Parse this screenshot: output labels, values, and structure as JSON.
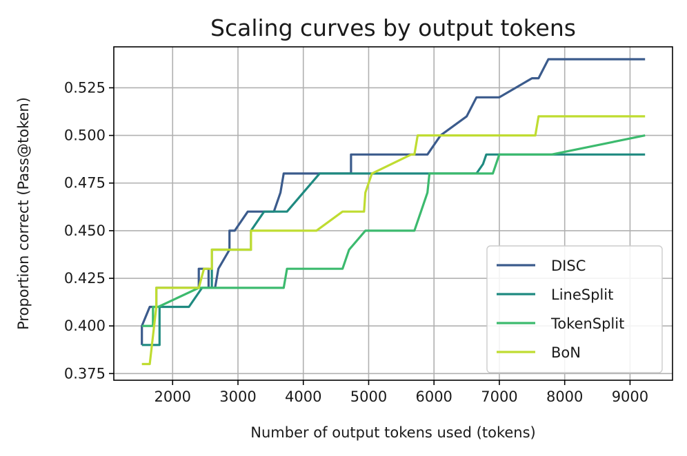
{
  "chart_data": {
    "type": "line",
    "title": "Scaling curves by output tokens",
    "xlabel": "Number of output tokens used (tokens)",
    "ylabel": "Proportion correct (Pass@token)",
    "xlim": [
      1100,
      9650
    ],
    "ylim": [
      0.3715,
      0.5465
    ],
    "xticks": [
      2000,
      3000,
      4000,
      5000,
      6000,
      7000,
      8000,
      9000
    ],
    "xtick_labels": [
      "2000",
      "3000",
      "4000",
      "5000",
      "6000",
      "7000",
      "8000",
      "9000"
    ],
    "yticks": [
      0.375,
      0.4,
      0.425,
      0.45,
      0.475,
      0.5,
      0.525
    ],
    "ytick_labels": [
      "0.375",
      "0.400",
      "0.425",
      "0.450",
      "0.475",
      "0.500",
      "0.525"
    ],
    "grid": true,
    "legend_position": "lower-right",
    "series": [
      {
        "name": "DISC",
        "color": "#3b5b8c",
        "points": [
          [
            1530,
            0.39
          ],
          [
            1530,
            0.4
          ],
          [
            1650,
            0.41
          ],
          [
            1750,
            0.41
          ],
          [
            1750,
            0.42
          ],
          [
            1820,
            0.42
          ],
          [
            2400,
            0.42
          ],
          [
            2400,
            0.43
          ],
          [
            2550,
            0.43
          ],
          [
            2550,
            0.42
          ],
          [
            2650,
            0.42
          ],
          [
            2700,
            0.43
          ],
          [
            2870,
            0.44
          ],
          [
            2870,
            0.45
          ],
          [
            2950,
            0.45
          ],
          [
            3150,
            0.46
          ],
          [
            3550,
            0.46
          ],
          [
            3650,
            0.47
          ],
          [
            3700,
            0.48
          ],
          [
            4700,
            0.48
          ],
          [
            4730,
            0.48
          ],
          [
            4730,
            0.49
          ],
          [
            5900,
            0.49
          ],
          [
            6100,
            0.5
          ],
          [
            6500,
            0.51
          ],
          [
            6650,
            0.52
          ],
          [
            7000,
            0.52
          ],
          [
            7500,
            0.53
          ],
          [
            7600,
            0.53
          ],
          [
            7750,
            0.54
          ],
          [
            9230,
            0.54
          ]
        ]
      },
      {
        "name": "LineSplit",
        "color": "#1f8a80",
        "points": [
          [
            1530,
            0.39
          ],
          [
            1800,
            0.39
          ],
          [
            1800,
            0.41
          ],
          [
            1900,
            0.41
          ],
          [
            2250,
            0.41
          ],
          [
            2450,
            0.42
          ],
          [
            2600,
            0.42
          ],
          [
            2600,
            0.44
          ],
          [
            2700,
            0.44
          ],
          [
            3200,
            0.44
          ],
          [
            3200,
            0.45
          ],
          [
            3400,
            0.46
          ],
          [
            3750,
            0.46
          ],
          [
            4000,
            0.47
          ],
          [
            4250,
            0.48
          ],
          [
            4800,
            0.48
          ],
          [
            6650,
            0.48
          ],
          [
            6750,
            0.485
          ],
          [
            6800,
            0.49
          ],
          [
            9230,
            0.49
          ]
        ]
      },
      {
        "name": "TokenSplit",
        "color": "#3cba6e",
        "points": [
          [
            1530,
            0.4
          ],
          [
            1700,
            0.4
          ],
          [
            1700,
            0.41
          ],
          [
            1780,
            0.41
          ],
          [
            2400,
            0.42
          ],
          [
            3700,
            0.42
          ],
          [
            3750,
            0.43
          ],
          [
            4600,
            0.43
          ],
          [
            4700,
            0.44
          ],
          [
            4950,
            0.45
          ],
          [
            5700,
            0.45
          ],
          [
            5800,
            0.46
          ],
          [
            5900,
            0.47
          ],
          [
            5930,
            0.48
          ],
          [
            6900,
            0.48
          ],
          [
            7000,
            0.49
          ],
          [
            7800,
            0.49
          ],
          [
            9230,
            0.5
          ]
        ]
      },
      {
        "name": "BoN",
        "color": "#bfdc31",
        "points": [
          [
            1530,
            0.38
          ],
          [
            1650,
            0.38
          ],
          [
            1750,
            0.41
          ],
          [
            1750,
            0.42
          ],
          [
            1950,
            0.42
          ],
          [
            2400,
            0.42
          ],
          [
            2480,
            0.43
          ],
          [
            2600,
            0.43
          ],
          [
            2600,
            0.44
          ],
          [
            3200,
            0.44
          ],
          [
            3200,
            0.45
          ],
          [
            3250,
            0.45
          ],
          [
            4200,
            0.45
          ],
          [
            4600,
            0.46
          ],
          [
            4930,
            0.46
          ],
          [
            4950,
            0.47
          ],
          [
            5050,
            0.48
          ],
          [
            5650,
            0.49
          ],
          [
            5700,
            0.49
          ],
          [
            5750,
            0.5
          ],
          [
            7550,
            0.5
          ],
          [
            7600,
            0.51
          ],
          [
            9230,
            0.51
          ]
        ]
      }
    ]
  }
}
